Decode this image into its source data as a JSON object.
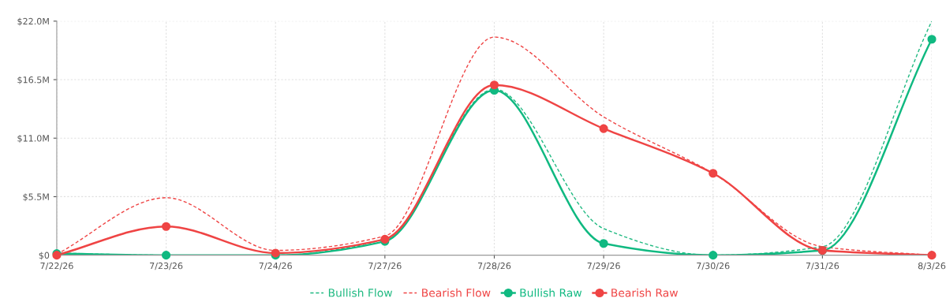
{
  "chart_data": {
    "type": "line",
    "categories": [
      "7/22/26",
      "7/23/26",
      "7/24/26",
      "7/27/26",
      "7/28/26",
      "7/29/26",
      "7/30/26",
      "7/31/26",
      "8/3/26"
    ],
    "series": [
      {
        "name": "Bullish Flow",
        "color": "#1fb981",
        "line_style": "dashed",
        "marker": "none",
        "values": [
          0.2,
          0,
          0,
          1.5,
          15.6,
          2.5,
          0,
          0.8,
          22.0
        ]
      },
      {
        "name": "Bearish Flow",
        "color": "#ef4444",
        "line_style": "dashed",
        "marker": "none",
        "values": [
          0.1,
          5.4,
          0.45,
          1.8,
          20.5,
          13.0,
          7.7,
          0.8,
          0
        ]
      },
      {
        "name": "Bullish Raw",
        "color": "#10b981",
        "line_style": "solid",
        "marker": "circle",
        "values": [
          0.15,
          0,
          0,
          1.3,
          15.5,
          1.1,
          0,
          0.45,
          20.3
        ]
      },
      {
        "name": "Bearish Raw",
        "color": "#ef4444",
        "line_style": "solid",
        "marker": "circle",
        "values": [
          0,
          2.7,
          0.2,
          1.5,
          16.0,
          11.9,
          7.7,
          0.45,
          0
        ]
      }
    ],
    "ylim": [
      0,
      22
    ],
    "yticks": [
      {
        "value": 0,
        "label": "$0"
      },
      {
        "value": 5.5,
        "label": "$5.5M"
      },
      {
        "value": 11,
        "label": "$11.0M"
      },
      {
        "value": 16.5,
        "label": "$16.5M"
      },
      {
        "value": 22,
        "label": "$22.0M"
      }
    ],
    "grid": true,
    "legend": "bottom"
  }
}
